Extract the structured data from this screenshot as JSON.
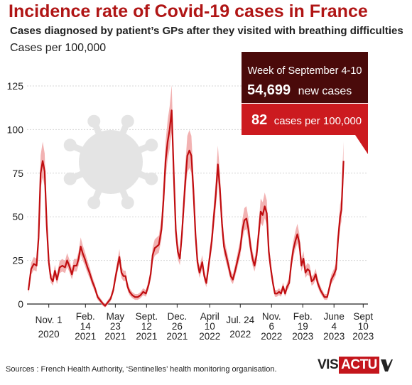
{
  "header": {
    "title": "Incidence rate of Covid-19 cases in France",
    "subtitle": "Cases diagnosed by patient’s GPs after they visited with breathing difficulties",
    "unit": "Cases per 100,000"
  },
  "callout": {
    "week": "Week of September 4-10",
    "cases_number": "54,699",
    "cases_text": "new cases",
    "rate_number": "82",
    "rate_text": "cases per 100,000"
  },
  "footer": {
    "source": "Sources : French Health Authority, ‘Sentinelles’ health monitoring organisation.",
    "logo_left": "VIS",
    "logo_right": "ACTU"
  },
  "colors": {
    "line": "#c00d10",
    "band": "#f0a4a4",
    "callout_dark": "#4a0a0a",
    "callout_red": "#cc1a1f",
    "grid": "#d6d6d6",
    "virus": "#e4e4e4"
  },
  "chart_data": {
    "type": "line",
    "ylim": [
      0,
      130
    ],
    "yticks": [
      0,
      25,
      50,
      75,
      100,
      125
    ],
    "grid": true,
    "x_ticks": [
      {
        "x": 3,
        "line1": "Nov. 1",
        "line2": "2020"
      },
      {
        "x": 8.4,
        "line1": "Feb.",
        "line2": "14",
        "line3": "2021"
      },
      {
        "x": 12.8,
        "line1": "May",
        "line2": "23",
        "line3": "2021"
      },
      {
        "x": 17.4,
        "line1": "Sept.",
        "line2": "12",
        "line3": "2021"
      },
      {
        "x": 21.9,
        "line1": "Dec.",
        "line2": "26",
        "line3": "2021"
      },
      {
        "x": 26.7,
        "line1": "April",
        "line2": "10",
        "line3": "2022"
      },
      {
        "x": 31.2,
        "line1": "Jul. 24",
        "line2": "2022"
      },
      {
        "x": 35.8,
        "line1": "Nov.",
        "line2": "6",
        "line3": "2022"
      },
      {
        "x": 40.4,
        "line1": "Feb.",
        "line2": "19",
        "line3": "2023"
      },
      {
        "x": 45,
        "line1": "June",
        "line2": "4",
        "line3": "2023"
      },
      {
        "x": 49.3,
        "line1": "Sept",
        "line2": "10",
        "line3": "2023"
      }
    ],
    "x_range": [
      0,
      50
    ],
    "series": [
      {
        "points": [
          [
            0,
            8
          ],
          [
            0.4,
            20
          ],
          [
            0.8,
            23
          ],
          [
            1.2,
            22
          ],
          [
            1.5,
            38
          ],
          [
            1.8,
            75
          ],
          [
            2.1,
            82
          ],
          [
            2.4,
            76
          ],
          [
            2.7,
            45
          ],
          [
            3.0,
            24
          ],
          [
            3.3,
            15
          ],
          [
            3.6,
            13
          ],
          [
            3.9,
            19
          ],
          [
            4.2,
            14
          ],
          [
            4.6,
            21
          ],
          [
            5.0,
            22
          ],
          [
            5.4,
            21
          ],
          [
            5.7,
            25
          ],
          [
            6.0,
            22
          ],
          [
            6.4,
            17
          ],
          [
            6.7,
            22
          ],
          [
            7.1,
            22
          ],
          [
            7.4,
            26
          ],
          [
            7.7,
            33
          ],
          [
            8.0,
            29
          ],
          [
            8.3,
            26
          ],
          [
            8.7,
            21
          ],
          [
            9.0,
            18
          ],
          [
            9.4,
            13
          ],
          [
            9.8,
            9
          ],
          [
            10.2,
            4
          ],
          [
            10.6,
            2
          ],
          [
            11.0,
            0
          ],
          [
            11.3,
            -1
          ],
          [
            11.7,
            1
          ],
          [
            12.1,
            3
          ],
          [
            12.5,
            8
          ],
          [
            12.8,
            15
          ],
          [
            13.1,
            21
          ],
          [
            13.4,
            27
          ],
          [
            13.7,
            18
          ],
          [
            14.0,
            16
          ],
          [
            14.3,
            16
          ],
          [
            14.6,
            10
          ],
          [
            14.9,
            7
          ],
          [
            15.3,
            5
          ],
          [
            15.7,
            4
          ],
          [
            16.1,
            4
          ],
          [
            16.5,
            5
          ],
          [
            16.9,
            7
          ],
          [
            17.3,
            6
          ],
          [
            17.7,
            11
          ],
          [
            18.0,
            17
          ],
          [
            18.3,
            28
          ],
          [
            18.6,
            32
          ],
          [
            18.9,
            33
          ],
          [
            19.2,
            34
          ],
          [
            19.6,
            43
          ],
          [
            19.9,
            60
          ],
          [
            20.2,
            82
          ],
          [
            20.5,
            93
          ],
          [
            20.8,
            100
          ],
          [
            21.1,
            111
          ],
          [
            21.4,
            75
          ],
          [
            21.7,
            42
          ],
          [
            22.0,
            30
          ],
          [
            22.3,
            26
          ],
          [
            22.6,
            40
          ],
          [
            22.9,
            58
          ],
          [
            23.1,
            70
          ],
          [
            23.4,
            85
          ],
          [
            23.7,
            88
          ],
          [
            24.0,
            85
          ],
          [
            24.3,
            65
          ],
          [
            24.6,
            40
          ],
          [
            24.9,
            24
          ],
          [
            25.2,
            18
          ],
          [
            25.6,
            24
          ],
          [
            25.9,
            16
          ],
          [
            26.2,
            12
          ],
          [
            26.6,
            24
          ],
          [
            27.0,
            36
          ],
          [
            27.3,
            50
          ],
          [
            27.6,
            63
          ],
          [
            27.9,
            80
          ],
          [
            28.2,
            66
          ],
          [
            28.5,
            46
          ],
          [
            28.8,
            33
          ],
          [
            29.1,
            28
          ],
          [
            29.4,
            23
          ],
          [
            29.8,
            16
          ],
          [
            30.1,
            14
          ],
          [
            30.5,
            20
          ],
          [
            30.8,
            25
          ],
          [
            31.2,
            32
          ],
          [
            31.5,
            42
          ],
          [
            31.8,
            48
          ],
          [
            32.1,
            49
          ],
          [
            32.4,
            43
          ],
          [
            32.7,
            33
          ],
          [
            33.0,
            26
          ],
          [
            33.3,
            22
          ],
          [
            33.6,
            28
          ],
          [
            33.9,
            40
          ],
          [
            34.2,
            53
          ],
          [
            34.5,
            51
          ],
          [
            34.8,
            56
          ],
          [
            35.1,
            52
          ],
          [
            35.4,
            30
          ],
          [
            35.7,
            20
          ],
          [
            36.0,
            12
          ],
          [
            36.3,
            6
          ],
          [
            36.6,
            6
          ],
          [
            36.9,
            7
          ],
          [
            37.2,
            6
          ],
          [
            37.5,
            10
          ],
          [
            37.8,
            6
          ],
          [
            38.1,
            10
          ],
          [
            38.4,
            12
          ],
          [
            38.7,
            23
          ],
          [
            39.0,
            31
          ],
          [
            39.3,
            36
          ],
          [
            39.6,
            40
          ],
          [
            39.9,
            35
          ],
          [
            40.2,
            22
          ],
          [
            40.5,
            26
          ],
          [
            40.8,
            18
          ],
          [
            41.1,
            20
          ],
          [
            41.4,
            19
          ],
          [
            41.7,
            13
          ],
          [
            42.0,
            14
          ],
          [
            42.3,
            17
          ],
          [
            42.6,
            12
          ],
          [
            43.0,
            8
          ],
          [
            43.3,
            6
          ],
          [
            43.6,
            4
          ],
          [
            44.0,
            4
          ],
          [
            44.3,
            9
          ],
          [
            44.6,
            14
          ],
          [
            45.0,
            17
          ],
          [
            45.3,
            20
          ],
          [
            45.6,
            37
          ],
          [
            45.9,
            50
          ],
          [
            46.1,
            54
          ],
          [
            46.4,
            82
          ]
        ]
      }
    ]
  }
}
